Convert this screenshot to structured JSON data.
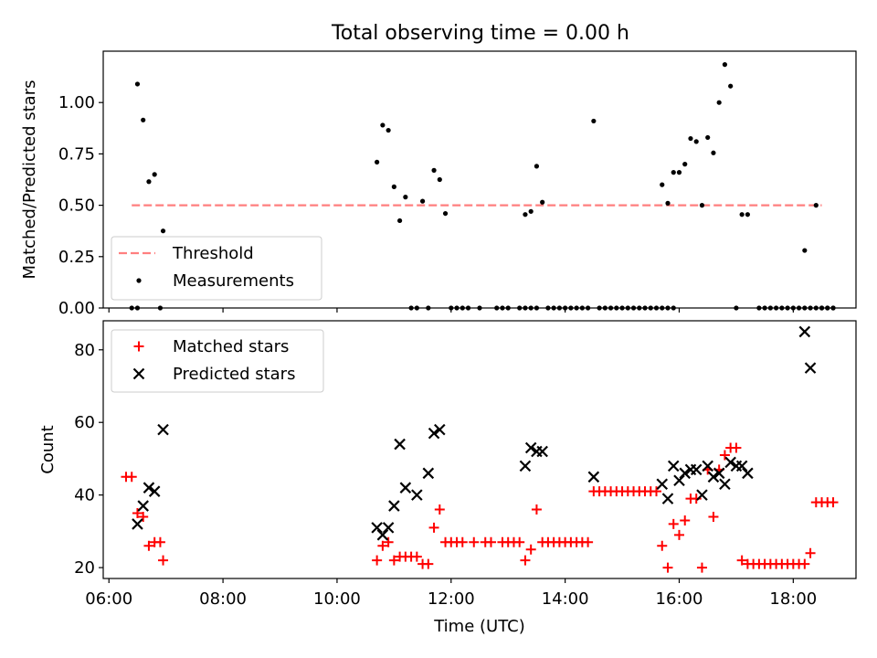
{
  "title": "Total observing time = 0.00 h",
  "chart_data": [
    {
      "type": "scatter",
      "title": "Total observing time = 0.00 h",
      "xlabel": "",
      "ylabel": "Matched/Predicted stars",
      "xlim": [
        "05:54",
        "19:06"
      ],
      "ylim": [
        0,
        1.25
      ],
      "yticks": [
        "0.00",
        "0.25",
        "0.50",
        "0.75",
        "1.00"
      ],
      "grid": false,
      "legend_position": "lower-left",
      "threshold": {
        "name": "Threshold",
        "value": 0.5,
        "x_range": [
          "06:24",
          "18:30"
        ],
        "color": "#ff7f7f",
        "style": "dashed"
      },
      "series": [
        {
          "name": "Measurements",
          "color": "#000000",
          "marker": "dot",
          "points": [
            [
              "06:24",
              0
            ],
            [
              "06:30",
              0
            ],
            [
              "06:30",
              1.09
            ],
            [
              "06:36",
              0.915
            ],
            [
              "06:42",
              0.615
            ],
            [
              "06:48",
              0.65
            ],
            [
              "06:54",
              0
            ],
            [
              "06:57",
              0.375
            ],
            [
              "10:42",
              0.71
            ],
            [
              "10:48",
              0.89
            ],
            [
              "10:54",
              0.865
            ],
            [
              "11:00",
              0.59
            ],
            [
              "11:06",
              0.425
            ],
            [
              "11:12",
              0.54
            ],
            [
              "11:18",
              0
            ],
            [
              "11:24",
              0
            ],
            [
              "11:30",
              0.52
            ],
            [
              "11:36",
              0
            ],
            [
              "11:42",
              0.67
            ],
            [
              "11:48",
              0.625
            ],
            [
              "11:54",
              0.46
            ],
            [
              "12:00",
              0
            ],
            [
              "12:06",
              0
            ],
            [
              "12:12",
              0
            ],
            [
              "12:18",
              0
            ],
            [
              "12:30",
              0
            ],
            [
              "12:48",
              0
            ],
            [
              "12:54",
              0
            ],
            [
              "13:00",
              0
            ],
            [
              "13:12",
              0
            ],
            [
              "13:18",
              0
            ],
            [
              "13:24",
              0
            ],
            [
              "13:30",
              0
            ],
            [
              "13:18",
              0.455
            ],
            [
              "13:24",
              0.47
            ],
            [
              "13:30",
              0.69
            ],
            [
              "13:36",
              0.515
            ],
            [
              "13:42",
              0
            ],
            [
              "13:48",
              0
            ],
            [
              "13:54",
              0
            ],
            [
              "14:00",
              0
            ],
            [
              "14:06",
              0
            ],
            [
              "14:12",
              0
            ],
            [
              "14:18",
              0
            ],
            [
              "14:24",
              0
            ],
            [
              "14:30",
              0.91
            ],
            [
              "14:36",
              0
            ],
            [
              "14:42",
              0
            ],
            [
              "14:48",
              0
            ],
            [
              "14:54",
              0
            ],
            [
              "15:00",
              0
            ],
            [
              "15:06",
              0
            ],
            [
              "15:12",
              0
            ],
            [
              "15:18",
              0
            ],
            [
              "15:24",
              0
            ],
            [
              "15:30",
              0
            ],
            [
              "15:36",
              0
            ],
            [
              "15:42",
              0
            ],
            [
              "15:48",
              0
            ],
            [
              "15:54",
              0
            ],
            [
              "15:42",
              0.6
            ],
            [
              "15:48",
              0.51
            ],
            [
              "15:54",
              0.66
            ],
            [
              "16:00",
              0.66
            ],
            [
              "16:06",
              0.7
            ],
            [
              "16:12",
              0.825
            ],
            [
              "16:18",
              0.81
            ],
            [
              "16:24",
              0.5
            ],
            [
              "16:30",
              0.83
            ],
            [
              "16:36",
              0.755
            ],
            [
              "16:42",
              1.0
            ],
            [
              "16:48",
              1.185
            ],
            [
              "16:54",
              1.08
            ],
            [
              "17:00",
              0
            ],
            [
              "17:06",
              0.455
            ],
            [
              "17:12",
              0.455
            ],
            [
              "17:24",
              0
            ],
            [
              "17:30",
              0
            ],
            [
              "17:36",
              0
            ],
            [
              "17:42",
              0
            ],
            [
              "17:48",
              0
            ],
            [
              "17:54",
              0
            ],
            [
              "18:00",
              0
            ],
            [
              "18:06",
              0
            ],
            [
              "18:12",
              0
            ],
            [
              "18:18",
              0
            ],
            [
              "18:24",
              0
            ],
            [
              "18:30",
              0
            ],
            [
              "18:36",
              0
            ],
            [
              "18:42",
              0
            ],
            [
              "18:12",
              0.28
            ],
            [
              "18:24",
              0.5
            ],
            [
              "18:30",
              0
            ],
            [
              "18:36",
              0
            ],
            [
              "18:42",
              0
            ]
          ]
        }
      ]
    },
    {
      "type": "scatter",
      "title": "",
      "xlabel": "Time (UTC)",
      "ylabel": "Count",
      "xlim": [
        "05:54",
        "19:06"
      ],
      "ylim": [
        17,
        88
      ],
      "yticks": [
        "20",
        "40",
        "60",
        "80"
      ],
      "xticks": [
        "06:00",
        "08:00",
        "10:00",
        "12:00",
        "14:00",
        "16:00",
        "18:00"
      ],
      "grid": false,
      "legend_position": "upper-left",
      "series": [
        {
          "name": "Matched stars",
          "color": "#ff0000",
          "marker": "plus",
          "points": [
            [
              "06:18",
              45
            ],
            [
              "06:24",
              45
            ],
            [
              "06:30",
              35
            ],
            [
              "06:36",
              34
            ],
            [
              "06:42",
              26
            ],
            [
              "06:48",
              27
            ],
            [
              "06:54",
              27
            ],
            [
              "06:57",
              22
            ],
            [
              "10:42",
              22
            ],
            [
              "10:48",
              26
            ],
            [
              "10:54",
              27
            ],
            [
              "11:00",
              22
            ],
            [
              "11:06",
              23
            ],
            [
              "11:12",
              23
            ],
            [
              "11:18",
              23
            ],
            [
              "11:24",
              23
            ],
            [
              "11:30",
              21
            ],
            [
              "11:36",
              21
            ],
            [
              "11:42",
              31
            ],
            [
              "11:48",
              36
            ],
            [
              "11:54",
              27
            ],
            [
              "12:00",
              27
            ],
            [
              "12:06",
              27
            ],
            [
              "12:12",
              27
            ],
            [
              "12:24",
              27
            ],
            [
              "12:36",
              27
            ],
            [
              "12:42",
              27
            ],
            [
              "12:54",
              27
            ],
            [
              "13:00",
              27
            ],
            [
              "13:06",
              27
            ],
            [
              "13:12",
              27
            ],
            [
              "13:18",
              22
            ],
            [
              "13:24",
              25
            ],
            [
              "13:30",
              36
            ],
            [
              "13:36",
              27
            ],
            [
              "13:42",
              27
            ],
            [
              "13:48",
              27
            ],
            [
              "13:54",
              27
            ],
            [
              "14:00",
              27
            ],
            [
              "14:06",
              27
            ],
            [
              "14:12",
              27
            ],
            [
              "14:18",
              27
            ],
            [
              "14:24",
              27
            ],
            [
              "14:30",
              41
            ],
            [
              "14:36",
              41
            ],
            [
              "14:42",
              41
            ],
            [
              "14:48",
              41
            ],
            [
              "14:54",
              41
            ],
            [
              "15:00",
              41
            ],
            [
              "15:06",
              41
            ],
            [
              "15:12",
              41
            ],
            [
              "15:18",
              41
            ],
            [
              "15:24",
              41
            ],
            [
              "15:30",
              41
            ],
            [
              "15:36",
              41
            ],
            [
              "15:42",
              26
            ],
            [
              "15:48",
              20
            ],
            [
              "15:54",
              32
            ],
            [
              "16:00",
              29
            ],
            [
              "16:06",
              33
            ],
            [
              "16:12",
              39
            ],
            [
              "16:18",
              39
            ],
            [
              "16:24",
              20
            ],
            [
              "16:30",
              47
            ],
            [
              "16:36",
              34
            ],
            [
              "16:42",
              47
            ],
            [
              "16:48",
              51
            ],
            [
              "16:54",
              53
            ],
            [
              "17:00",
              53
            ],
            [
              "17:06",
              22
            ],
            [
              "17:12",
              21
            ],
            [
              "17:18",
              21
            ],
            [
              "17:24",
              21
            ],
            [
              "17:30",
              21
            ],
            [
              "17:36",
              21
            ],
            [
              "17:42",
              21
            ],
            [
              "17:48",
              21
            ],
            [
              "17:54",
              21
            ],
            [
              "18:00",
              21
            ],
            [
              "18:06",
              21
            ],
            [
              "18:12",
              21
            ],
            [
              "18:18",
              24
            ],
            [
              "18:24",
              38
            ],
            [
              "18:30",
              38
            ],
            [
              "18:36",
              38
            ],
            [
              "18:42",
              38
            ]
          ]
        },
        {
          "name": "Predicted stars",
          "color": "#000000",
          "marker": "x",
          "points": [
            [
              "06:30",
              32
            ],
            [
              "06:36",
              37
            ],
            [
              "06:42",
              42
            ],
            [
              "06:48",
              41
            ],
            [
              "06:57",
              58
            ],
            [
              "10:42",
              31
            ],
            [
              "10:48",
              29
            ],
            [
              "10:54",
              31
            ],
            [
              "11:00",
              37
            ],
            [
              "11:06",
              54
            ],
            [
              "11:12",
              42
            ],
            [
              "11:24",
              40
            ],
            [
              "11:36",
              46
            ],
            [
              "11:42",
              57
            ],
            [
              "11:48",
              58
            ],
            [
              "13:18",
              48
            ],
            [
              "13:24",
              53
            ],
            [
              "13:30",
              52
            ],
            [
              "13:36",
              52
            ],
            [
              "14:30",
              45
            ],
            [
              "15:42",
              43
            ],
            [
              "15:48",
              39
            ],
            [
              "15:54",
              48
            ],
            [
              "16:00",
              44
            ],
            [
              "16:06",
              46
            ],
            [
              "16:12",
              47
            ],
            [
              "16:18",
              47
            ],
            [
              "16:24",
              40
            ],
            [
              "16:30",
              48
            ],
            [
              "16:36",
              45
            ],
            [
              "16:42",
              46
            ],
            [
              "16:48",
              43
            ],
            [
              "16:54",
              49
            ],
            [
              "17:00",
              48
            ],
            [
              "17:06",
              48
            ],
            [
              "17:12",
              46
            ],
            [
              "18:12",
              85
            ],
            [
              "18:18",
              75
            ]
          ]
        }
      ]
    }
  ]
}
